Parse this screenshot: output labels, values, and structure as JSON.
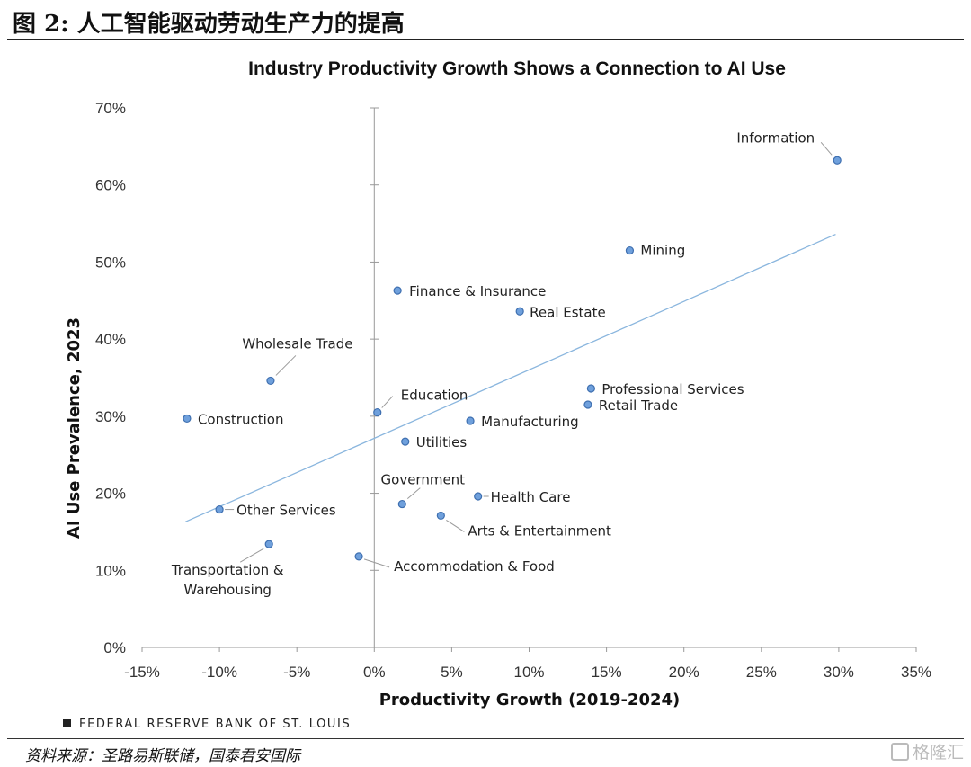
{
  "header": {
    "figure_title": "图 2: 人工智能驱动劳动生产力的提高"
  },
  "footer": {
    "fed_label": "FEDERAL RESERVE BANK OF ST. LOUIS",
    "source": "资料来源：圣路易斯联储，国泰君安国际",
    "watermark": "格隆汇"
  },
  "colors": {
    "point_fill": "#6fa0dc",
    "point_stroke": "#3e6fb0",
    "trend": "#8ab6de",
    "axis": "#999999"
  },
  "chart_data": {
    "type": "scatter",
    "title": "Industry Productivity Growth Shows a Connection to AI Use",
    "xlabel": "Productivity Growth (2019-2024)",
    "ylabel": "AI Use Prevalence, 2023",
    "xlim": [
      -15,
      35
    ],
    "ylim": [
      0,
      70
    ],
    "xticks": [
      -15,
      -10,
      -5,
      0,
      5,
      10,
      15,
      20,
      25,
      30,
      35
    ],
    "yticks": [
      0,
      10,
      20,
      30,
      40,
      50,
      60,
      70
    ],
    "x_tick_labels": [
      "-15%",
      "-10%",
      "-5%",
      "0%",
      "5%",
      "10%",
      "15%",
      "20%",
      "25%",
      "30%",
      "35%"
    ],
    "y_tick_labels": [
      "0%",
      "10%",
      "20%",
      "30%",
      "40%",
      "50%",
      "60%",
      "70%"
    ],
    "grid": false,
    "trendline": {
      "x": [
        -12.2,
        29.8
      ],
      "y": [
        16.3,
        53.6
      ]
    },
    "points": [
      {
        "label": "Information",
        "x": 29.9,
        "y": 63.2
      },
      {
        "label": "Mining",
        "x": 16.5,
        "y": 51.5
      },
      {
        "label": "Finance & Insurance",
        "x": 1.5,
        "y": 46.3
      },
      {
        "label": "Real Estate",
        "x": 9.4,
        "y": 43.6
      },
      {
        "label": "Wholesale Trade",
        "x": -6.7,
        "y": 34.6
      },
      {
        "label": "Professional Services",
        "x": 14.0,
        "y": 33.6
      },
      {
        "label": "Retail Trade",
        "x": 13.8,
        "y": 31.5
      },
      {
        "label": "Education",
        "x": 0.2,
        "y": 30.5
      },
      {
        "label": "Construction",
        "x": -12.1,
        "y": 29.7
      },
      {
        "label": "Manufacturing",
        "x": 6.2,
        "y": 29.4
      },
      {
        "label": "Utilities",
        "x": 2.0,
        "y": 26.7
      },
      {
        "label": "Health Care",
        "x": 6.7,
        "y": 19.6
      },
      {
        "label": "Government",
        "x": 1.8,
        "y": 18.6
      },
      {
        "label": "Other Services",
        "x": -10.0,
        "y": 17.9
      },
      {
        "label": "Arts & Entertainment",
        "x": 4.3,
        "y": 17.1
      },
      {
        "label": "Transportation & Warehousing",
        "x": -6.8,
        "y": 13.4
      },
      {
        "label": "Accommodation & Food",
        "x": -1.0,
        "y": 11.8
      }
    ]
  }
}
